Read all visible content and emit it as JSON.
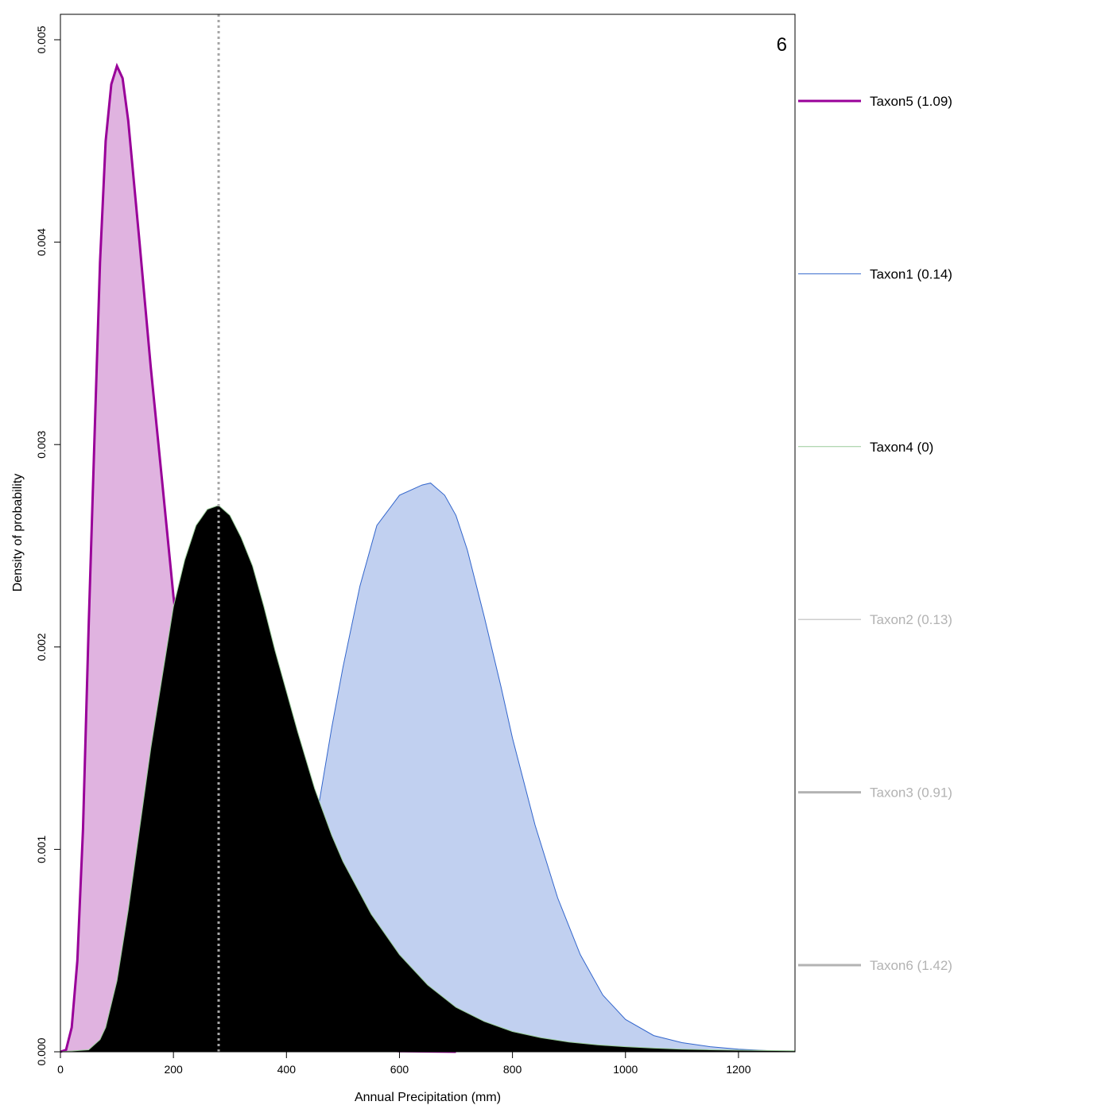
{
  "chart_data": {
    "type": "area",
    "title": "",
    "panel_label": "6",
    "xlabel": "Annual Precipitation (mm)",
    "ylabel": "Density of probability",
    "xlim": [
      0,
      1300
    ],
    "ylim": [
      0,
      0.0051
    ],
    "x_ticks": [
      0,
      200,
      400,
      600,
      800,
      1000,
      1200
    ],
    "y_ticks": [
      0.0,
      0.001,
      0.002,
      0.003,
      0.004,
      0.005
    ],
    "x_tick_labels": [
      "0",
      "200",
      "400",
      "600",
      "800",
      "1000",
      "1200"
    ],
    "y_tick_labels": [
      "0.000",
      "0.001",
      "0.002",
      "0.003",
      "0.004",
      "0.005"
    ],
    "grid": false,
    "legend_position": "right-outside",
    "reference_line": {
      "x": 280,
      "style": "dotted",
      "color": "#a6a6a6"
    },
    "series": [
      {
        "name": "Taxon5 (1.09)",
        "line_color": "#990099",
        "fill_color": "#e0b3e0",
        "line_width": 3,
        "text_color": "#000000",
        "legend_line_width": 3,
        "points": [
          [
            0,
            0
          ],
          [
            10,
            1e-05
          ],
          [
            20,
            0.00012
          ],
          [
            30,
            0.00045
          ],
          [
            40,
            0.0011
          ],
          [
            50,
            0.0021
          ],
          [
            60,
            0.003
          ],
          [
            70,
            0.0039
          ],
          [
            80,
            0.0045
          ],
          [
            90,
            0.00478
          ],
          [
            100,
            0.00487
          ],
          [
            110,
            0.00481
          ],
          [
            120,
            0.0046
          ],
          [
            140,
            0.004
          ],
          [
            160,
            0.00338
          ],
          [
            180,
            0.00282
          ],
          [
            200,
            0.00225
          ],
          [
            220,
            0.0018
          ],
          [
            240,
            0.0014
          ],
          [
            260,
            0.00108
          ],
          [
            280,
            0.00082
          ],
          [
            300,
            0.00061
          ],
          [
            330,
            0.0004
          ],
          [
            360,
            0.00025
          ],
          [
            400,
            0.00013
          ],
          [
            450,
            5e-05
          ],
          [
            500,
            2e-05
          ],
          [
            600,
            3e-06
          ],
          [
            700,
            0
          ]
        ]
      },
      {
        "name": "Taxon1 (0.14)",
        "line_color": "#3366cc",
        "fill_color": "#c1d0f0",
        "line_width": 1,
        "text_color": "#000000",
        "legend_line_width": 1,
        "points": [
          [
            0,
            0
          ],
          [
            200,
            0
          ],
          [
            300,
            3e-05
          ],
          [
            350,
            0.0001
          ],
          [
            400,
            0.00035
          ],
          [
            430,
            0.00075
          ],
          [
            450,
            0.0011
          ],
          [
            480,
            0.0016
          ],
          [
            500,
            0.0019
          ],
          [
            530,
            0.0023
          ],
          [
            560,
            0.0026
          ],
          [
            600,
            0.00275
          ],
          [
            640,
            0.0028
          ],
          [
            655,
            0.00281
          ],
          [
            680,
            0.00275
          ],
          [
            700,
            0.00265
          ],
          [
            720,
            0.00248
          ],
          [
            750,
            0.00215
          ],
          [
            780,
            0.0018
          ],
          [
            800,
            0.00155
          ],
          [
            840,
            0.00112
          ],
          [
            880,
            0.00076
          ],
          [
            920,
            0.00048
          ],
          [
            960,
            0.00028
          ],
          [
            1000,
            0.00016
          ],
          [
            1050,
            8e-05
          ],
          [
            1100,
            4.5e-05
          ],
          [
            1150,
            2.5e-05
          ],
          [
            1200,
            1.3e-05
          ],
          [
            1250,
            6e-06
          ],
          [
            1300,
            2e-06
          ]
        ]
      },
      {
        "name": "Taxon4 (0)",
        "line_color": "#99cc99",
        "fill_color": "#000000",
        "line_width": 1,
        "text_color": "#000000",
        "legend_line_width": 1,
        "points": [
          [
            0,
            0
          ],
          [
            50,
            1e-05
          ],
          [
            70,
            6e-05
          ],
          [
            80,
            0.00012
          ],
          [
            100,
            0.00035
          ],
          [
            120,
            0.0007
          ],
          [
            140,
            0.0011
          ],
          [
            160,
            0.0015
          ],
          [
            180,
            0.00185
          ],
          [
            200,
            0.0022
          ],
          [
            220,
            0.00243
          ],
          [
            240,
            0.0026
          ],
          [
            260,
            0.00268
          ],
          [
            280,
            0.0027
          ],
          [
            300,
            0.00265
          ],
          [
            320,
            0.00254
          ],
          [
            340,
            0.0024
          ],
          [
            360,
            0.0022
          ],
          [
            380,
            0.00198
          ],
          [
            400,
            0.00178
          ],
          [
            420,
            0.00158
          ],
          [
            450,
            0.0013
          ],
          [
            480,
            0.00107
          ],
          [
            500,
            0.00094
          ],
          [
            550,
            0.00068
          ],
          [
            600,
            0.00048
          ],
          [
            650,
            0.00033
          ],
          [
            700,
            0.00022
          ],
          [
            750,
            0.00015
          ],
          [
            800,
            0.0001
          ],
          [
            850,
            7e-05
          ],
          [
            900,
            4.8e-05
          ],
          [
            950,
            3.4e-05
          ],
          [
            1000,
            2.5e-05
          ],
          [
            1050,
            1.8e-05
          ],
          [
            1100,
            1.3e-05
          ],
          [
            1150,
            1e-05
          ],
          [
            1200,
            8e-06
          ],
          [
            1300,
            5e-06
          ]
        ]
      },
      {
        "name": "Taxon2 (0.13)",
        "line_color": "#bebebe",
        "text_color": "#b3b3b3",
        "legend_line_width": 1.2
      },
      {
        "name": "Taxon3 (0.91)",
        "line_color": "#b3b3b3",
        "text_color": "#b3b3b3",
        "legend_line_width": 3
      },
      {
        "name": "Taxon6 (1.42)",
        "line_color": "#b3b3b3",
        "text_color": "#b3b3b3",
        "legend_line_width": 3
      }
    ]
  }
}
